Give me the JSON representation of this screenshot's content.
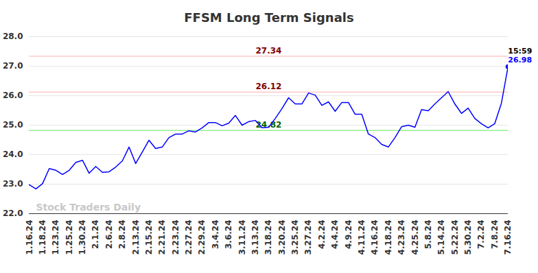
{
  "chart_data": {
    "type": "line",
    "title": "FFSM Long Term Signals",
    "categories": [
      "1.16.24",
      null,
      "1.18.24",
      null,
      "1.23.24",
      null,
      "1.25.24",
      null,
      "1.30.24",
      null,
      "2.1.24",
      null,
      "2.6.24",
      null,
      "2.8.24",
      null,
      "2.13.24",
      null,
      "2.15.24",
      null,
      "2.21.24",
      null,
      "2.23.24",
      null,
      "2.27.24",
      null,
      "2.29.24",
      null,
      "3.4.24",
      null,
      "3.6.24",
      null,
      "3.11.24",
      null,
      "3.13.24",
      null,
      "3.18.24",
      null,
      "3.20.24",
      null,
      "3.25.24",
      null,
      "3.27.24",
      null,
      "4.2.24",
      null,
      "4.4.24",
      null,
      "4.9.24",
      null,
      "4.11.24",
      null,
      "4.16.24",
      null,
      "4.18.24",
      null,
      "4.23.24",
      null,
      "4.25.24",
      null,
      "5.8.24",
      null,
      "5.14.24",
      null,
      "5.22.24",
      null,
      "5.30.24",
      null,
      "7.2.24",
      null,
      "7.8.24",
      null,
      "7.16.24"
    ],
    "values": [
      22.98,
      22.84,
      23.02,
      23.53,
      23.47,
      23.33,
      23.47,
      23.74,
      23.81,
      23.37,
      23.6,
      23.4,
      23.42,
      23.58,
      23.79,
      24.26,
      23.7,
      24.09,
      24.49,
      24.21,
      24.26,
      24.58,
      24.7,
      24.7,
      24.81,
      24.77,
      24.91,
      25.09,
      25.09,
      24.98,
      25.07,
      25.33,
      25.0,
      25.12,
      25.16,
      24.91,
      24.93,
      25.23,
      25.56,
      25.93,
      25.72,
      25.72,
      26.09,
      26.02,
      25.67,
      25.79,
      25.47,
      25.77,
      25.77,
      25.37,
      25.37,
      24.7,
      24.58,
      24.35,
      24.26,
      24.58,
      24.95,
      25.0,
      24.93,
      25.53,
      25.49,
      25.72,
      25.93,
      26.14,
      25.72,
      25.4,
      25.58,
      25.23,
      25.05,
      24.91,
      25.05,
      25.74,
      26.98
    ],
    "color": "#0000ff",
    "ylim": [
      22,
      28
    ],
    "yticks": [
      22,
      23,
      24,
      25,
      26,
      27,
      28
    ],
    "grid": true,
    "reference_lines": [
      {
        "value": 27.34,
        "color": "#ffc8c8",
        "label_color": "#800000"
      },
      {
        "value": 26.12,
        "color": "#ffc8c8",
        "label_color": "#800000"
      },
      {
        "value": 24.82,
        "color": "#90ee90",
        "label_color": "#006400"
      }
    ],
    "annotations": [
      {
        "text": "15:59"
      }
    ],
    "watermark": "Stock Traders Daily"
  }
}
